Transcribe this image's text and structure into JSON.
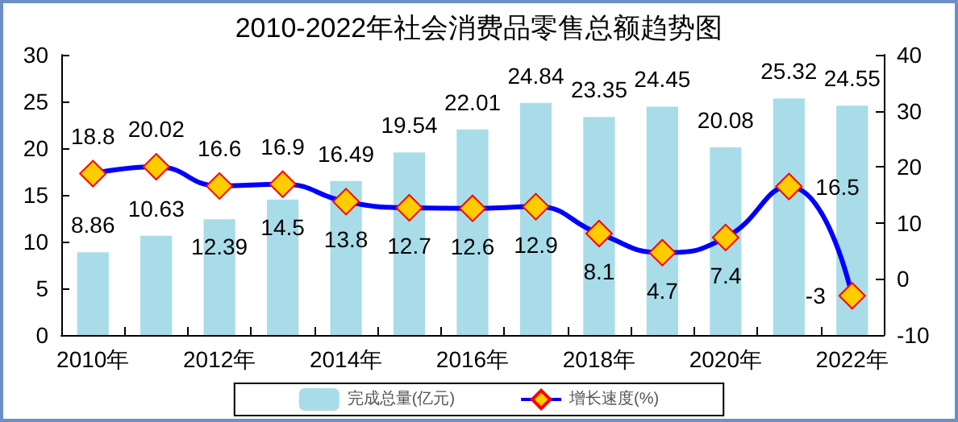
{
  "chart_data": {
    "type": "bar",
    "title": "2010-2022年社会消费品零售总额趋势图",
    "categories": [
      "2010年",
      null,
      "2012年",
      null,
      "2014年",
      null,
      "2016年",
      null,
      "2018年",
      null,
      "2020年",
      null,
      "2022年"
    ],
    "series": [
      {
        "name": "完成总量(亿元)",
        "color": "#a8dce8",
        "values": [
          8.86,
          10.63,
          12.39,
          14.5,
          16.49,
          19.54,
          22.01,
          24.84,
          23.35,
          24.45,
          20.08,
          25.32,
          24.55
        ]
      },
      {
        "name": "增长速度(%)",
        "type": "line",
        "axis": "y2",
        "color": "#0000ff",
        "values": [
          18.8,
          20.02,
          16.6,
          16.9,
          13.8,
          12.7,
          12.6,
          12.9,
          8.1,
          4.7,
          7.4,
          16.5,
          -3
        ]
      }
    ],
    "ylim": [
      0,
      30
    ],
    "yticks": [
      0,
      5,
      10,
      15,
      20,
      25,
      30
    ],
    "y2lim": [
      -10,
      40
    ],
    "y2ticks": [
      -10,
      0,
      10,
      20,
      30,
      40
    ],
    "marker": "diamond",
    "data_labels": true,
    "grid": false,
    "legend": "bottom"
  }
}
